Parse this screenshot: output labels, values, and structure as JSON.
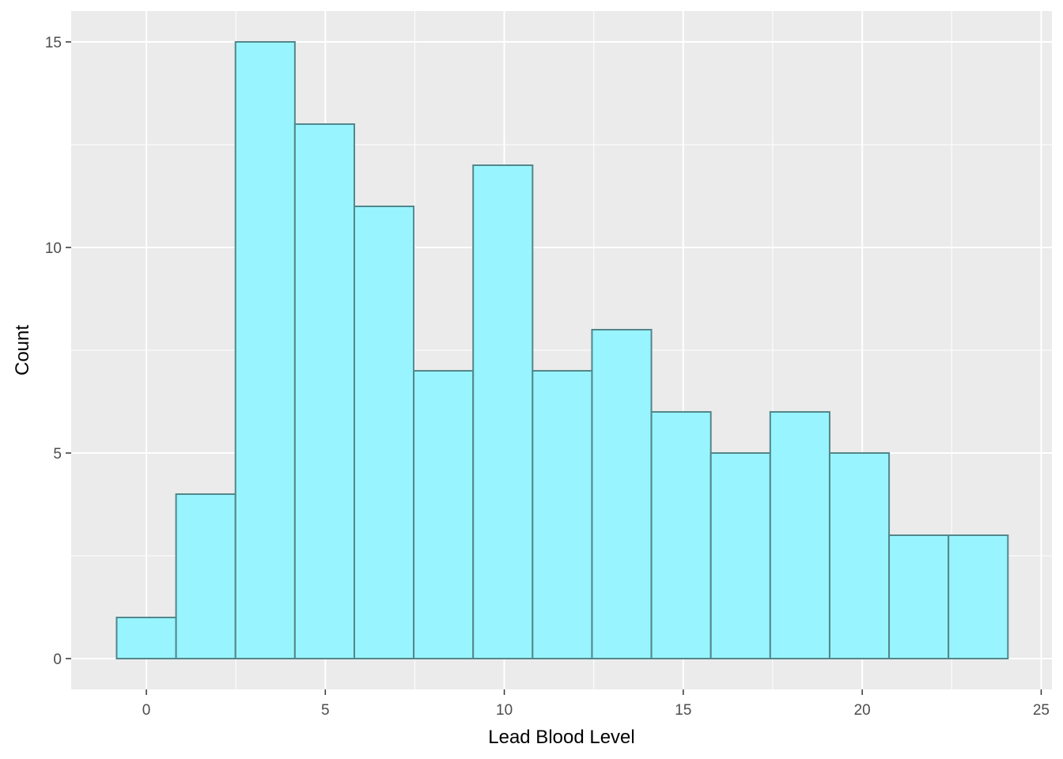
{
  "chart_data": {
    "type": "histogram",
    "xlabel": "Lead Blood Level",
    "ylabel": "Count",
    "xlim": [
      -2.1,
      25.3
    ],
    "ylim": [
      -0.75,
      15.75
    ],
    "x_ticks": [
      0,
      5,
      10,
      15,
      20,
      25
    ],
    "y_ticks": [
      0,
      5,
      10,
      15
    ],
    "grid": true,
    "bin_width": 1.66,
    "bins": [
      {
        "start": -0.83,
        "end": 0.83,
        "count": 1
      },
      {
        "start": 0.83,
        "end": 2.49,
        "count": 4
      },
      {
        "start": 2.49,
        "end": 4.15,
        "count": 15
      },
      {
        "start": 4.15,
        "end": 5.81,
        "count": 13
      },
      {
        "start": 5.81,
        "end": 7.47,
        "count": 11
      },
      {
        "start": 7.47,
        "end": 9.13,
        "count": 7
      },
      {
        "start": 9.13,
        "end": 10.79,
        "count": 12
      },
      {
        "start": 10.79,
        "end": 12.45,
        "count": 7
      },
      {
        "start": 12.45,
        "end": 14.11,
        "count": 8
      },
      {
        "start": 14.11,
        "end": 15.77,
        "count": 6
      },
      {
        "start": 15.77,
        "end": 17.43,
        "count": 5
      },
      {
        "start": 17.43,
        "end": 19.09,
        "count": 6
      },
      {
        "start": 19.09,
        "end": 20.75,
        "count": 5
      },
      {
        "start": 20.75,
        "end": 22.41,
        "count": 3
      },
      {
        "start": 22.41,
        "end": 24.07,
        "count": 3
      }
    ],
    "colors": {
      "bar_fill": "#98f5ff",
      "bar_stroke": "#53868b",
      "panel_bg": "#ebebeb",
      "grid": "#ffffff"
    }
  }
}
